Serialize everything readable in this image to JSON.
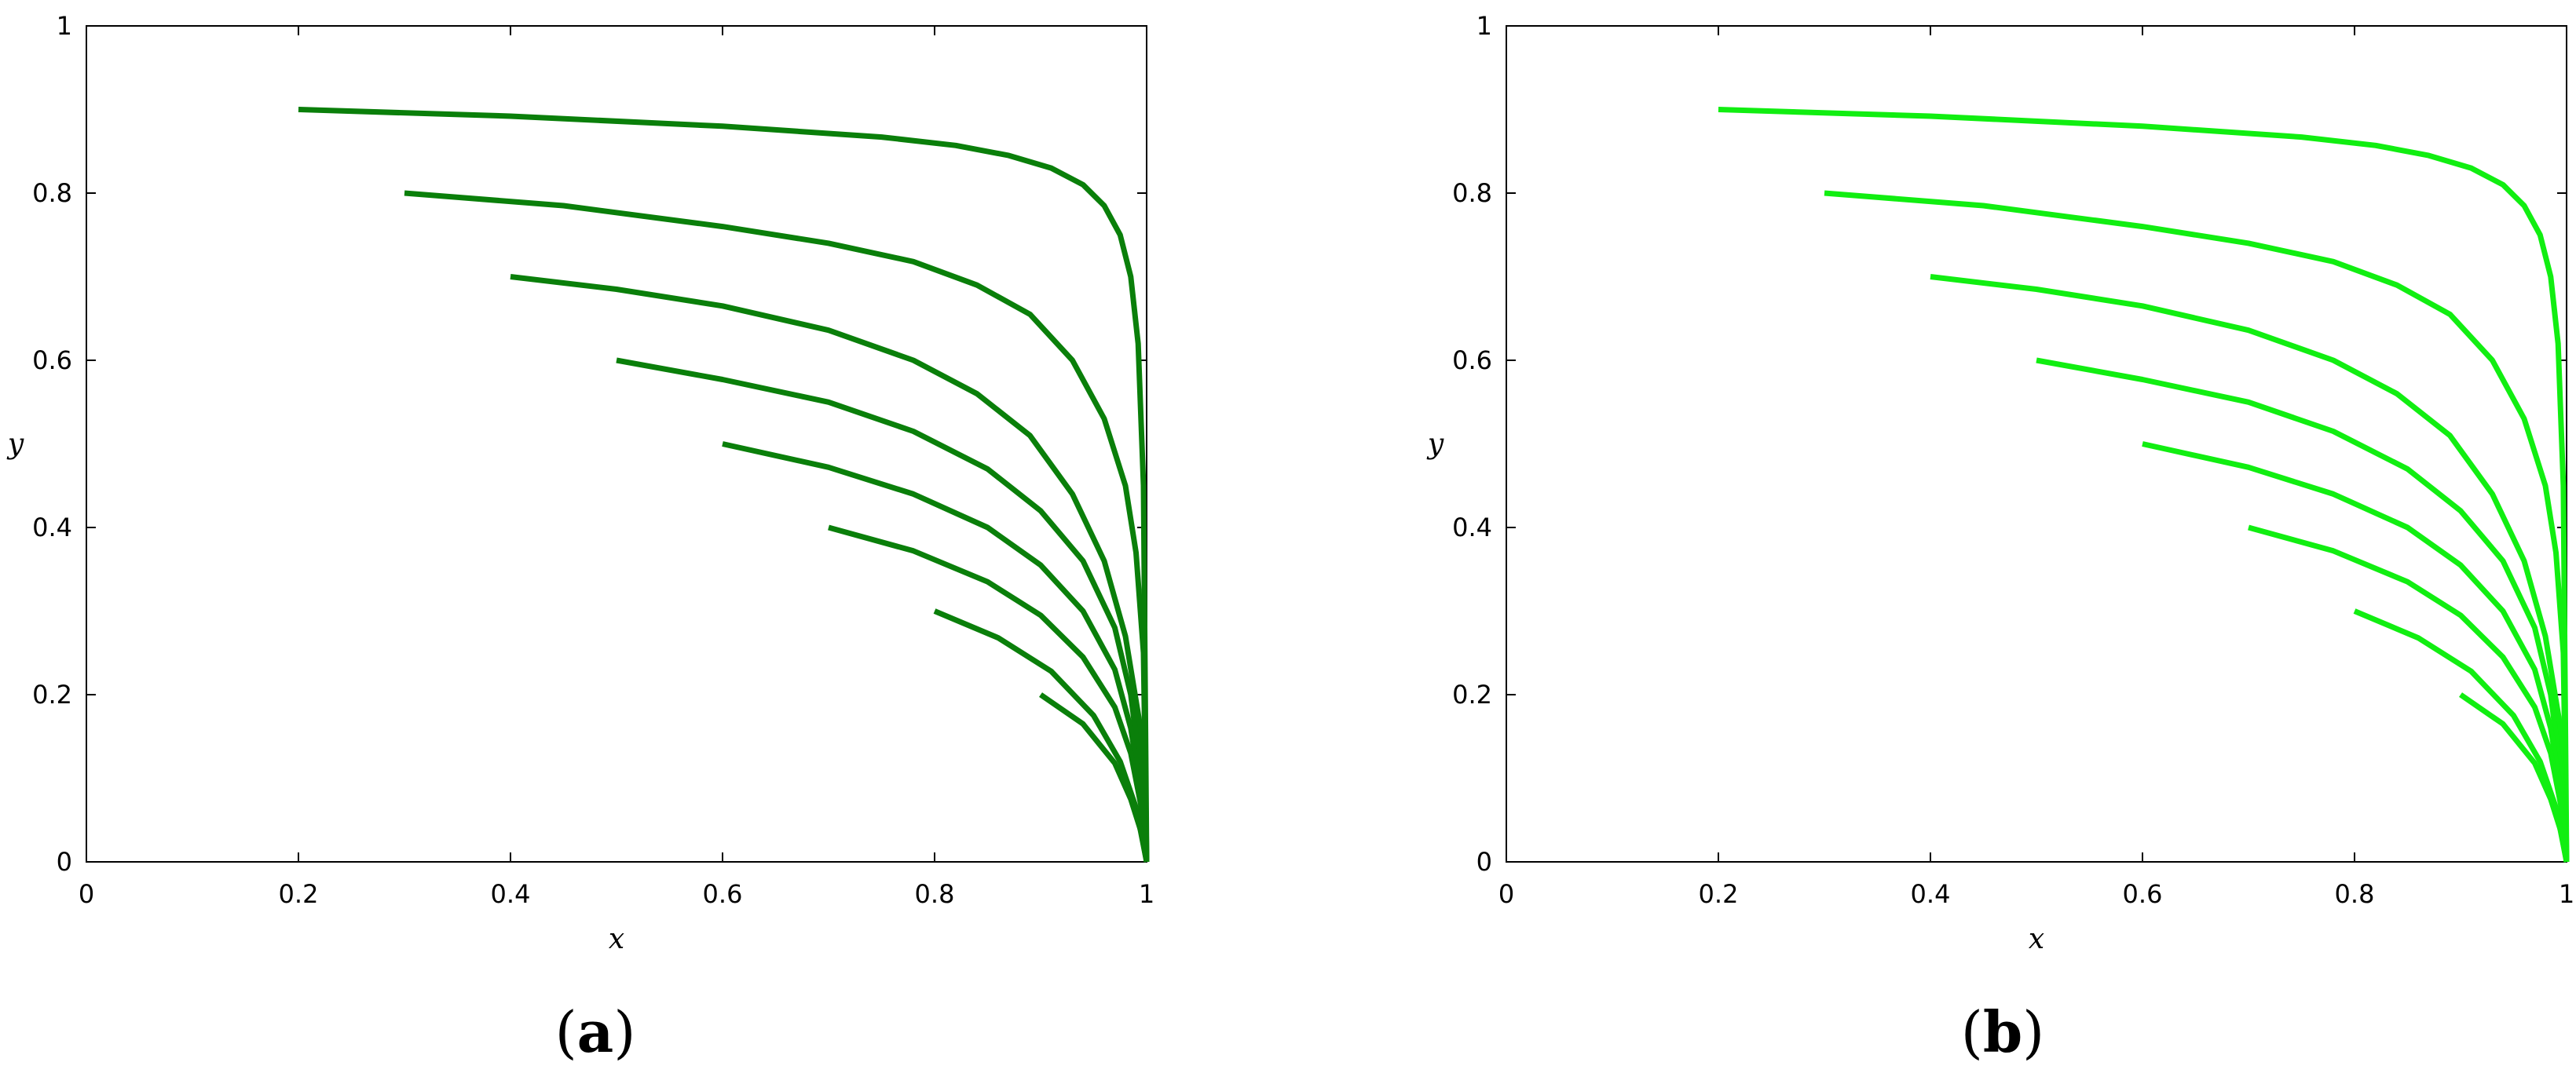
{
  "chart_data": [
    {
      "type": "line",
      "panel_label": {
        "open": "(",
        "letter": "a",
        "close": ")"
      },
      "xlabel": "x",
      "ylabel": "y",
      "xlim": [
        0,
        1
      ],
      "ylim": [
        0,
        1
      ],
      "xticks": [
        "0",
        "0.2",
        "0.4",
        "0.6",
        "0.8",
        "1"
      ],
      "yticks": [
        "0",
        "0.2",
        "0.4",
        "0.6",
        "0.8",
        "1"
      ],
      "grid": false,
      "line_color": "#0a7f0a",
      "series": [
        {
          "x": [
            0.2,
            0.4,
            0.6,
            0.75,
            0.82,
            0.87,
            0.91,
            0.94,
            0.96,
            0.975,
            0.985,
            0.992,
            0.997,
            1.0
          ],
          "y": [
            0.9,
            0.892,
            0.88,
            0.867,
            0.857,
            0.845,
            0.83,
            0.81,
            0.785,
            0.75,
            0.7,
            0.62,
            0.45,
            0.0
          ]
        },
        {
          "x": [
            0.3,
            0.45,
            0.6,
            0.7,
            0.78,
            0.84,
            0.89,
            0.93,
            0.96,
            0.98,
            0.99,
            0.997,
            1.0
          ],
          "y": [
            0.8,
            0.785,
            0.76,
            0.74,
            0.718,
            0.69,
            0.655,
            0.6,
            0.53,
            0.45,
            0.37,
            0.25,
            0.0
          ]
        },
        {
          "x": [
            0.4,
            0.5,
            0.6,
            0.7,
            0.78,
            0.84,
            0.89,
            0.93,
            0.96,
            0.98,
            0.993,
            1.0
          ],
          "y": [
            0.7,
            0.685,
            0.665,
            0.636,
            0.6,
            0.56,
            0.51,
            0.44,
            0.36,
            0.27,
            0.17,
            0.0
          ]
        },
        {
          "x": [
            0.5,
            0.6,
            0.7,
            0.78,
            0.85,
            0.9,
            0.94,
            0.97,
            0.985,
            0.995,
            1.0
          ],
          "y": [
            0.6,
            0.577,
            0.55,
            0.515,
            0.47,
            0.42,
            0.36,
            0.28,
            0.2,
            0.1,
            0.0
          ]
        },
        {
          "x": [
            0.6,
            0.7,
            0.78,
            0.85,
            0.9,
            0.94,
            0.97,
            0.985,
            0.995,
            1.0
          ],
          "y": [
            0.5,
            0.472,
            0.44,
            0.4,
            0.355,
            0.3,
            0.23,
            0.16,
            0.08,
            0.0
          ]
        },
        {
          "x": [
            0.7,
            0.78,
            0.85,
            0.9,
            0.94,
            0.97,
            0.985,
            0.995,
            1.0
          ],
          "y": [
            0.4,
            0.372,
            0.335,
            0.295,
            0.245,
            0.185,
            0.13,
            0.065,
            0.0
          ]
        },
        {
          "x": [
            0.8,
            0.86,
            0.91,
            0.95,
            0.975,
            0.99,
            1.0
          ],
          "y": [
            0.3,
            0.268,
            0.228,
            0.175,
            0.12,
            0.065,
            0.0
          ]
        },
        {
          "x": [
            0.9,
            0.94,
            0.97,
            0.985,
            0.995,
            1.0
          ],
          "y": [
            0.2,
            0.165,
            0.118,
            0.075,
            0.035,
            0.0
          ]
        }
      ]
    },
    {
      "type": "line",
      "panel_label": {
        "open": "(",
        "letter": "b",
        "close": ")"
      },
      "xlabel": "x",
      "ylabel": "y",
      "xlim": [
        0,
        1
      ],
      "ylim": [
        0,
        1
      ],
      "xticks": [
        "0",
        "0.2",
        "0.4",
        "0.6",
        "0.8",
        "1"
      ],
      "yticks": [
        "0",
        "0.2",
        "0.4",
        "0.6",
        "0.8",
        "1"
      ],
      "grid": false,
      "line_color": "#11ee11",
      "series": [
        {
          "x": [
            0.2,
            0.4,
            0.6,
            0.75,
            0.82,
            0.87,
            0.91,
            0.94,
            0.96,
            0.975,
            0.985,
            0.992,
            0.997,
            1.0
          ],
          "y": [
            0.9,
            0.892,
            0.88,
            0.867,
            0.857,
            0.845,
            0.83,
            0.81,
            0.785,
            0.75,
            0.7,
            0.62,
            0.45,
            0.0
          ]
        },
        {
          "x": [
            0.3,
            0.45,
            0.6,
            0.7,
            0.78,
            0.84,
            0.89,
            0.93,
            0.96,
            0.98,
            0.99,
            0.997,
            1.0
          ],
          "y": [
            0.8,
            0.785,
            0.76,
            0.74,
            0.718,
            0.69,
            0.655,
            0.6,
            0.53,
            0.45,
            0.37,
            0.25,
            0.0
          ]
        },
        {
          "x": [
            0.4,
            0.5,
            0.6,
            0.7,
            0.78,
            0.84,
            0.89,
            0.93,
            0.96,
            0.98,
            0.993,
            1.0
          ],
          "y": [
            0.7,
            0.685,
            0.665,
            0.636,
            0.6,
            0.56,
            0.51,
            0.44,
            0.36,
            0.27,
            0.17,
            0.0
          ]
        },
        {
          "x": [
            0.5,
            0.6,
            0.7,
            0.78,
            0.85,
            0.9,
            0.94,
            0.97,
            0.985,
            0.995,
            1.0
          ],
          "y": [
            0.6,
            0.577,
            0.55,
            0.515,
            0.47,
            0.42,
            0.36,
            0.28,
            0.2,
            0.1,
            0.0
          ]
        },
        {
          "x": [
            0.6,
            0.7,
            0.78,
            0.85,
            0.9,
            0.94,
            0.97,
            0.985,
            0.995,
            1.0
          ],
          "y": [
            0.5,
            0.472,
            0.44,
            0.4,
            0.355,
            0.3,
            0.23,
            0.16,
            0.08,
            0.0
          ]
        },
        {
          "x": [
            0.7,
            0.78,
            0.85,
            0.9,
            0.94,
            0.97,
            0.985,
            0.995,
            1.0
          ],
          "y": [
            0.4,
            0.372,
            0.335,
            0.295,
            0.245,
            0.185,
            0.13,
            0.065,
            0.0
          ]
        },
        {
          "x": [
            0.8,
            0.86,
            0.91,
            0.95,
            0.975,
            0.99,
            1.0
          ],
          "y": [
            0.3,
            0.268,
            0.228,
            0.175,
            0.12,
            0.065,
            0.0
          ]
        },
        {
          "x": [
            0.9,
            0.94,
            0.97,
            0.985,
            0.995,
            1.0
          ],
          "y": [
            0.2,
            0.165,
            0.118,
            0.075,
            0.035,
            0.0
          ]
        }
      ]
    }
  ]
}
